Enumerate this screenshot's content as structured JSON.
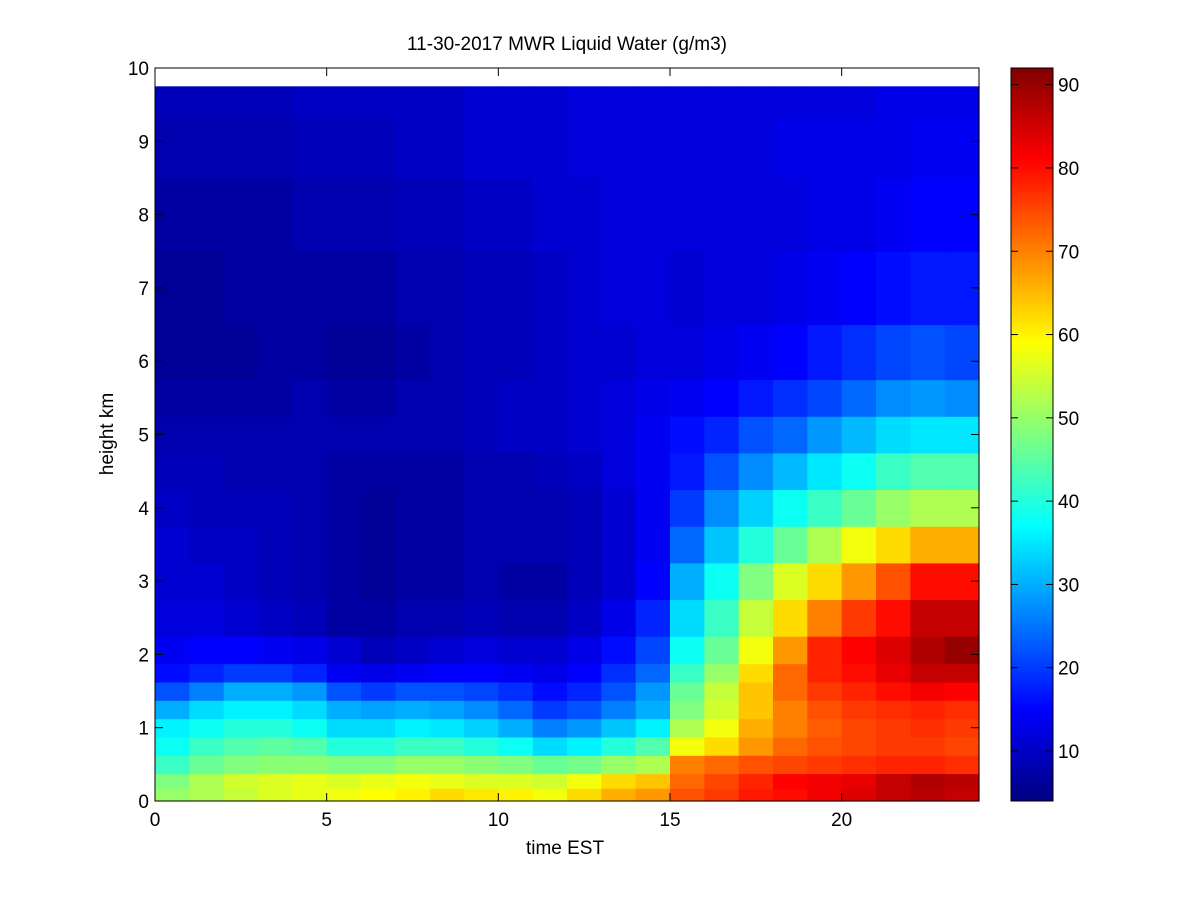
{
  "chart_data": {
    "type": "heatmap",
    "title": "11-30-2017 MWR Liquid Water (g/m3)",
    "xlabel": "time EST",
    "ylabel": "height km",
    "xlim": [
      0,
      24
    ],
    "ylim": [
      0,
      10
    ],
    "x_ticks": [
      0,
      5,
      10,
      15,
      20
    ],
    "y_ticks": [
      0,
      1,
      2,
      3,
      4,
      5,
      6,
      7,
      8,
      9,
      10
    ],
    "x_tick_labels": [
      "0",
      "5",
      "10",
      "15",
      "20"
    ],
    "y_tick_labels": [
      "0",
      "1",
      "2",
      "3",
      "4",
      "5",
      "6",
      "7",
      "8",
      "9",
      "10"
    ],
    "colormap": "jet",
    "colorbar": {
      "clim": [
        4,
        92
      ],
      "ticks": [
        10,
        20,
        30,
        40,
        50,
        60,
        70,
        80,
        90
      ],
      "tick_labels": [
        "10",
        "20",
        "30",
        "40",
        "50",
        "60",
        "70",
        "80",
        "90"
      ]
    },
    "x": [
      0.5,
      1.5,
      2.5,
      3.5,
      4.5,
      5.5,
      6.5,
      7.5,
      8.5,
      9.5,
      10.5,
      11.5,
      12.5,
      13.5,
      14.5,
      15.5,
      16.5,
      17.5,
      18.5,
      19.5,
      20.5,
      21.5,
      22.5,
      23.5
    ],
    "y": [
      0.1,
      0.25,
      0.5,
      0.75,
      1.0,
      1.25,
      1.5,
      1.75,
      2.0,
      2.5,
      3.0,
      3.5,
      4.0,
      4.5,
      5.0,
      5.5,
      6.0,
      7.0,
      8.0,
      9.0,
      9.6
    ],
    "z": [
      [
        50,
        52,
        54,
        56,
        57,
        58,
        59,
        60,
        62,
        61,
        60,
        58,
        62,
        66,
        68,
        74,
        76,
        79,
        80,
        82,
        84,
        86,
        87,
        86
      ],
      [
        48,
        52,
        55,
        56,
        57,
        56,
        57,
        58,
        57,
        56,
        56,
        55,
        58,
        62,
        64,
        72,
        75,
        78,
        81,
        82,
        83,
        86,
        88,
        87
      ],
      [
        42,
        46,
        48,
        49,
        49,
        48,
        48,
        50,
        50,
        49,
        48,
        46,
        47,
        50,
        52,
        70,
        72,
        74,
        75,
        76,
        77,
        78,
        78,
        77
      ],
      [
        38,
        42,
        44,
        45,
        44,
        40,
        40,
        42,
        42,
        40,
        38,
        34,
        36,
        40,
        44,
        58,
        62,
        68,
        72,
        74,
        75,
        76,
        76,
        75
      ],
      [
        36,
        38,
        40,
        40,
        38,
        34,
        34,
        36,
        35,
        33,
        30,
        26,
        28,
        32,
        36,
        52,
        58,
        66,
        70,
        73,
        75,
        76,
        77,
        76
      ],
      [
        30,
        34,
        36,
        36,
        34,
        30,
        29,
        30,
        29,
        27,
        24,
        20,
        22,
        26,
        30,
        48,
        55,
        64,
        70,
        74,
        76,
        77,
        78,
        77
      ],
      [
        22,
        26,
        30,
        30,
        28,
        22,
        20,
        22,
        22,
        21,
        19,
        16,
        18,
        22,
        28,
        46,
        54,
        64,
        72,
        76,
        78,
        80,
        82,
        81
      ],
      [
        16,
        18,
        20,
        20,
        18,
        14,
        13,
        14,
        15,
        15,
        14,
        13,
        15,
        19,
        24,
        42,
        50,
        62,
        72,
        78,
        80,
        83,
        86,
        86
      ],
      [
        14,
        15,
        15,
        14,
        13,
        11,
        9,
        10,
        11,
        12,
        11,
        11,
        13,
        16,
        21,
        38,
        46,
        58,
        68,
        78,
        81,
        84,
        88,
        90
      ],
      [
        12,
        12,
        11,
        10,
        9,
        7,
        7,
        8,
        8,
        9,
        8,
        8,
        10,
        13,
        18,
        34,
        42,
        54,
        62,
        70,
        76,
        80,
        86,
        86
      ],
      [
        11,
        11,
        10,
        9,
        8,
        7,
        6,
        7,
        7,
        8,
        7,
        7,
        9,
        11,
        15,
        30,
        38,
        48,
        56,
        62,
        68,
        74,
        80,
        80
      ],
      [
        11,
        10,
        10,
        9,
        8,
        7,
        6,
        7,
        7,
        8,
        8,
        8,
        9,
        11,
        14,
        24,
        32,
        40,
        46,
        52,
        58,
        62,
        66,
        66
      ],
      [
        10,
        9,
        9,
        9,
        8,
        7,
        6,
        7,
        7,
        8,
        8,
        8,
        9,
        11,
        14,
        20,
        27,
        33,
        38,
        42,
        46,
        50,
        52,
        52
      ],
      [
        9,
        9,
        8,
        8,
        8,
        7,
        7,
        7,
        7,
        8,
        8,
        9,
        10,
        12,
        14,
        17,
        22,
        27,
        31,
        35,
        38,
        42,
        44,
        44
      ],
      [
        8,
        8,
        8,
        8,
        8,
        8,
        8,
        8,
        8,
        9,
        10,
        10,
        11,
        12,
        14,
        16,
        18,
        22,
        24,
        28,
        31,
        34,
        35,
        35
      ],
      [
        7,
        7,
        7,
        7,
        8,
        7,
        7,
        8,
        8,
        9,
        10,
        10,
        11,
        12,
        13,
        14,
        15,
        17,
        19,
        21,
        24,
        27,
        28,
        27
      ],
      [
        6,
        6,
        6,
        7,
        7,
        6,
        6,
        7,
        8,
        9,
        9,
        10,
        11,
        11,
        12,
        12,
        13,
        14,
        15,
        17,
        19,
        21,
        22,
        21
      ],
      [
        6,
        6,
        7,
        7,
        7,
        7,
        7,
        8,
        8,
        9,
        9,
        10,
        11,
        12,
        12,
        11,
        12,
        12,
        13,
        14,
        15,
        16,
        17,
        17
      ],
      [
        7,
        7,
        7,
        7,
        8,
        8,
        8,
        9,
        9,
        10,
        10,
        11,
        11,
        12,
        12,
        12,
        12,
        12,
        12,
        13,
        13,
        14,
        15,
        15
      ],
      [
        8,
        8,
        8,
        8,
        9,
        9,
        9,
        10,
        10,
        11,
        11,
        11,
        12,
        12,
        12,
        12,
        12,
        12,
        13,
        13,
        13,
        13,
        14,
        14
      ],
      [
        9,
        9,
        9,
        9,
        10,
        10,
        10,
        10,
        10,
        11,
        11,
        11,
        12,
        12,
        12,
        12,
        12,
        12,
        12,
        12,
        12,
        13,
        13,
        13
      ]
    ]
  }
}
